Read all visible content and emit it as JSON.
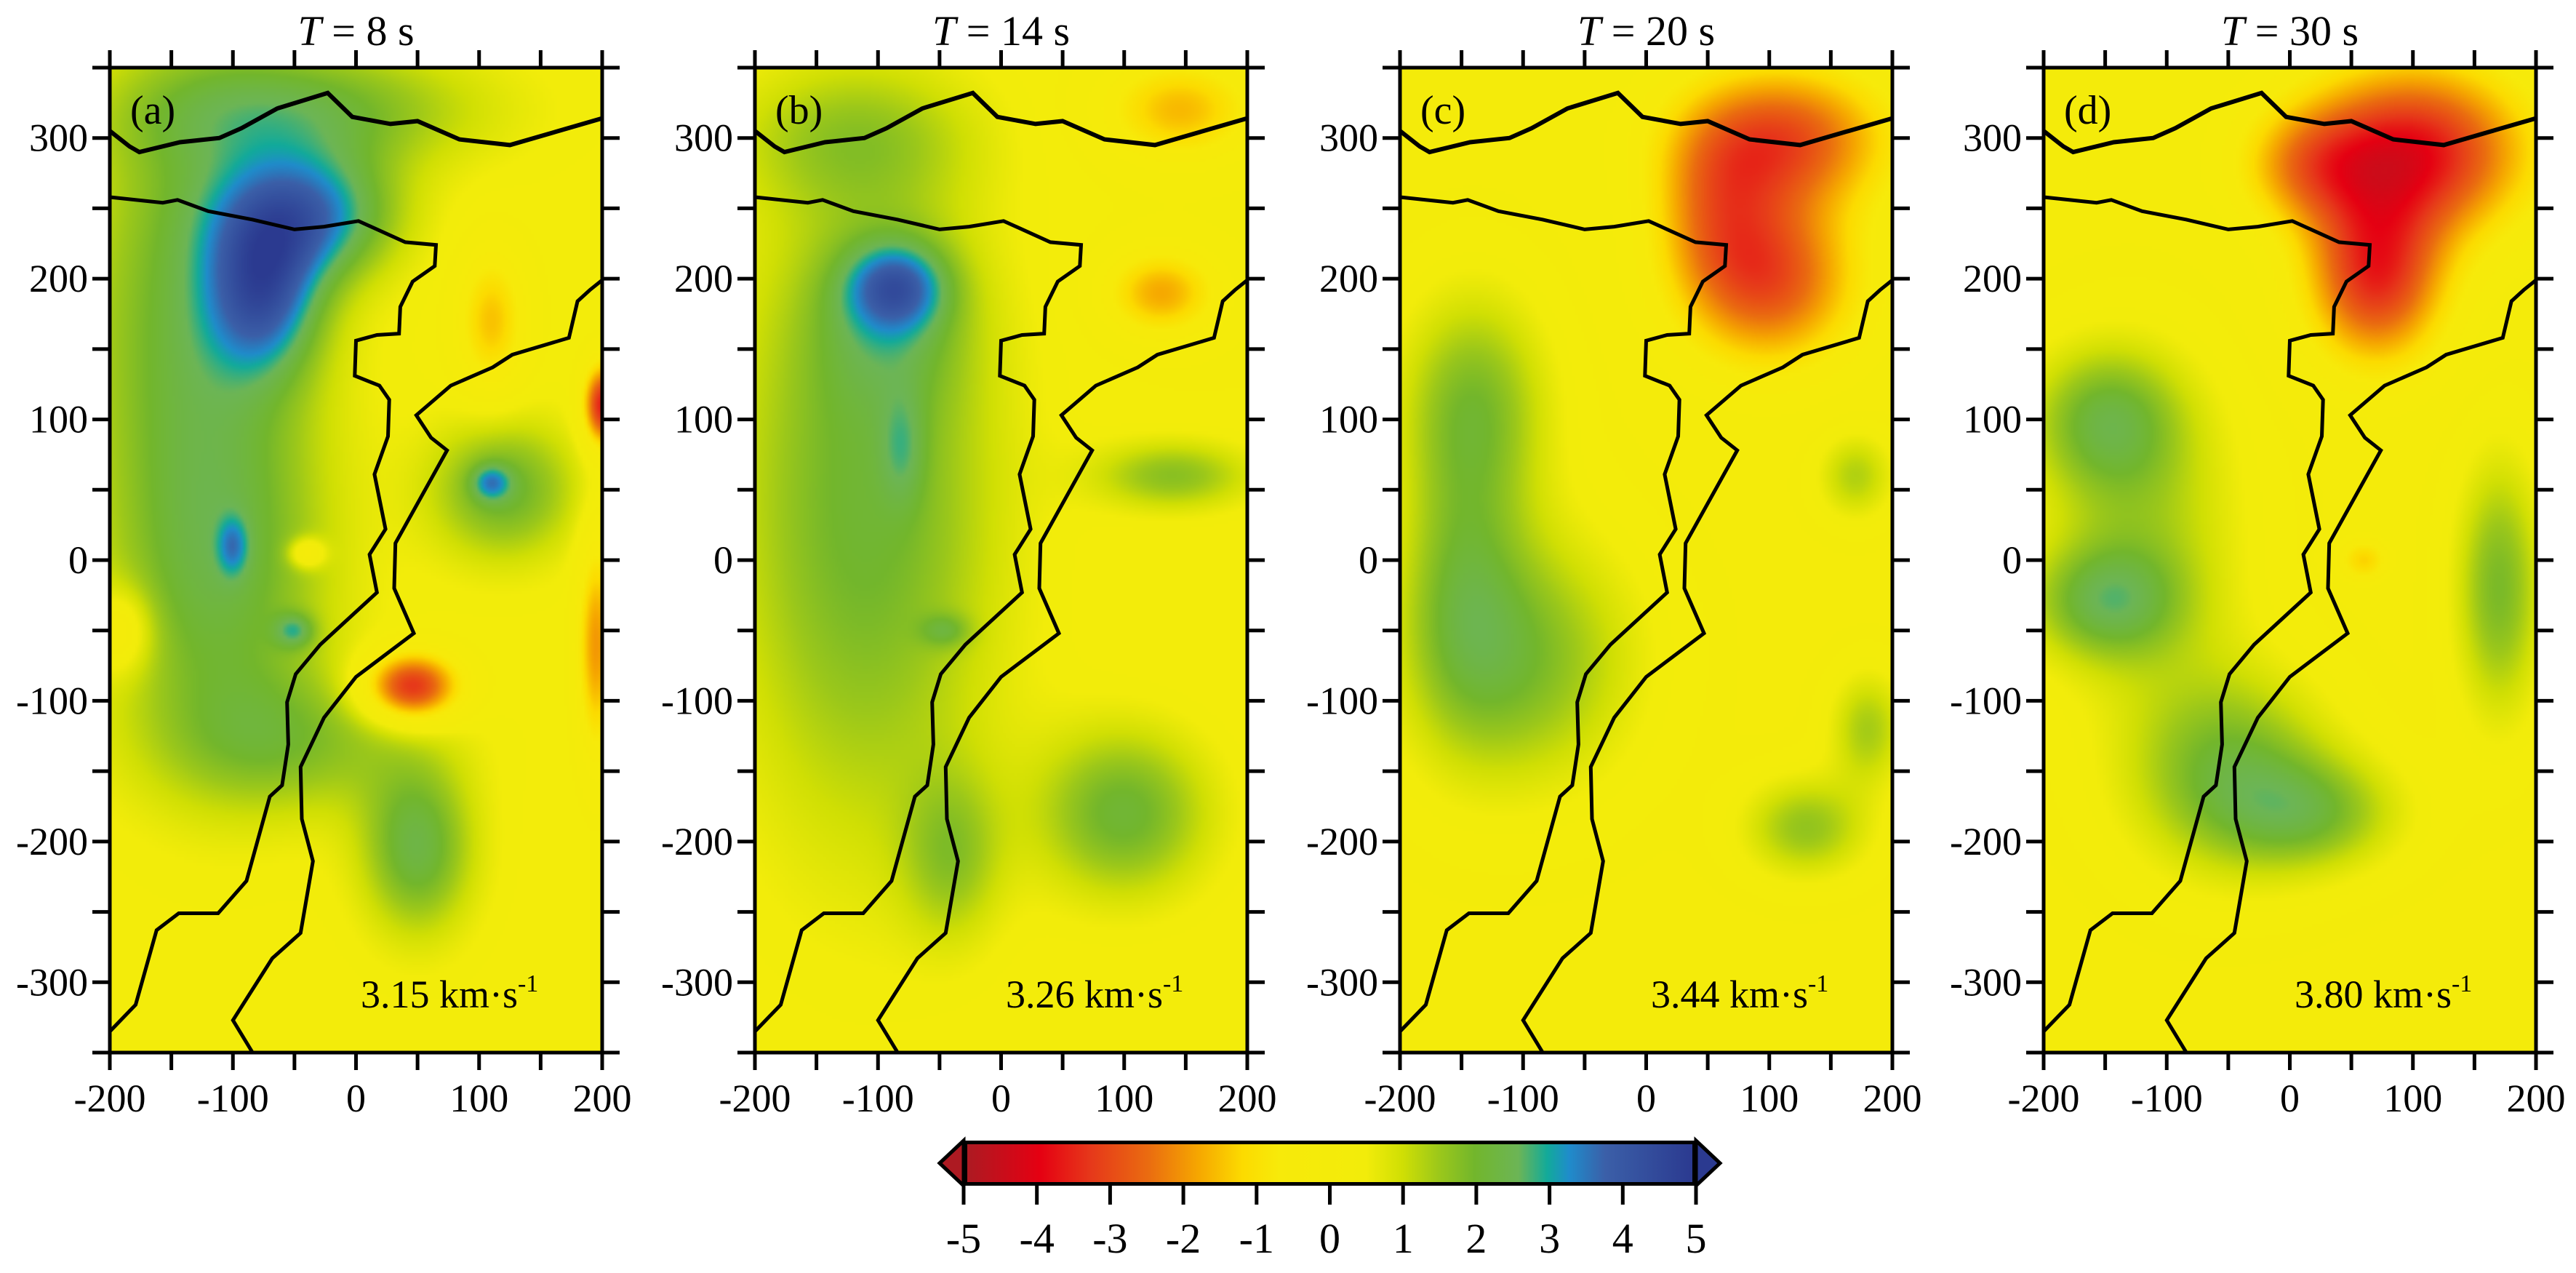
{
  "chart_data": {
    "type": "heatmap",
    "xlim": [
      -200,
      200
    ],
    "ylim": [
      -350,
      350
    ],
    "xticks": [
      -200,
      -100,
      0,
      100,
      200
    ],
    "yticks": [
      -300,
      -200,
      -100,
      0,
      100,
      200,
      300
    ],
    "minor_tick_step": 50,
    "panels": [
      {
        "label": "(a)",
        "title_var": "T",
        "title_rest": " = 8 s",
        "velocity": "3.15 km·s",
        "velocity_exp": "-1",
        "background": 0.3,
        "anomalies": [
          {
            "x": -130,
            "y": 180,
            "rx": 95,
            "ry": 170,
            "amp": 1.8
          },
          {
            "x": -110,
            "y": -20,
            "rx": 90,
            "ry": 130,
            "amp": 1.6
          },
          {
            "x": -40,
            "y": 320,
            "rx": 140,
            "ry": 45,
            "amp": 1.7
          },
          {
            "x": -50,
            "y": -130,
            "rx": 110,
            "ry": 50,
            "amp": 1.2
          },
          {
            "x": -40,
            "y": 245,
            "rx": 70,
            "ry": 45,
            "amp": 2.8
          },
          {
            "x": -75,
            "y": 190,
            "rx": 45,
            "ry": 55,
            "amp": 2.6
          },
          {
            "x": 110,
            "y": 170,
            "rx": 28,
            "ry": 50,
            "amp": -1.8
          },
          {
            "x": 200,
            "y": 110,
            "rx": 15,
            "ry": 28,
            "amp": -4.0
          },
          {
            "x": 120,
            "y": 50,
            "rx": 60,
            "ry": 50,
            "amp": 1.8
          },
          {
            "x": 110,
            "y": 55,
            "rx": 15,
            "ry": 12,
            "amp": 1.6
          },
          {
            "x": -100,
            "y": 10,
            "rx": 12,
            "ry": 20,
            "amp": 1.3
          },
          {
            "x": -50,
            "y": -50,
            "rx": 16,
            "ry": 12,
            "amp": 1.4
          },
          {
            "x": -40,
            "y": 5,
            "rx": 14,
            "ry": 10,
            "amp": -1.7
          },
          {
            "x": 45,
            "y": -90,
            "rx": 38,
            "ry": 24,
            "amp": -4.0
          },
          {
            "x": 195,
            "y": -60,
            "rx": 15,
            "ry": 75,
            "amp": -2.3
          },
          {
            "x": 50,
            "y": -205,
            "rx": 45,
            "ry": 60,
            "amp": 2.0
          },
          {
            "x": -190,
            "y": -50,
            "rx": 25,
            "ry": 30,
            "amp": -1.2
          }
        ]
      },
      {
        "label": "(b)",
        "title_var": "T",
        "title_rest": " = 14 s",
        "velocity": "3.26 km·s",
        "velocity_exp": "-1",
        "background": 0.2,
        "anomalies": [
          {
            "x": -110,
            "y": 40,
            "rx": 110,
            "ry": 240,
            "amp": 1.9
          },
          {
            "x": -120,
            "y": 300,
            "rx": 100,
            "ry": 50,
            "amp": 1.0
          },
          {
            "x": -85,
            "y": 195,
            "rx": 40,
            "ry": 30,
            "amp": 2.2
          },
          {
            "x": -90,
            "y": 170,
            "rx": 60,
            "ry": 60,
            "amp": 1.0
          },
          {
            "x": -80,
            "y": 80,
            "rx": 18,
            "ry": 40,
            "amp": 0.8
          },
          {
            "x": -45,
            "y": -50,
            "rx": 20,
            "ry": 12,
            "amp": 0.9
          },
          {
            "x": 145,
            "y": 320,
            "rx": 60,
            "ry": 35,
            "amp": -1.8
          },
          {
            "x": 130,
            "y": 190,
            "rx": 45,
            "ry": 30,
            "amp": -2.0
          },
          {
            "x": 140,
            "y": 60,
            "rx": 65,
            "ry": 25,
            "amp": 1.5
          },
          {
            "x": 100,
            "y": -180,
            "rx": 70,
            "ry": 60,
            "amp": 1.9
          },
          {
            "x": -40,
            "y": -210,
            "rx": 40,
            "ry": 60,
            "amp": 1.2
          }
        ]
      },
      {
        "label": "(c)",
        "title_var": "T",
        "title_rest": " = 20 s",
        "velocity": "3.44 km·s",
        "velocity_exp": "-1",
        "background": 0.1,
        "anomalies": [
          {
            "x": 110,
            "y": 300,
            "rx": 85,
            "ry": 50,
            "amp": -3.0
          },
          {
            "x": 100,
            "y": 200,
            "rx": 70,
            "ry": 60,
            "amp": -3.0
          },
          {
            "x": 55,
            "y": 250,
            "rx": 50,
            "ry": 60,
            "amp": -1.5
          },
          {
            "x": -140,
            "y": 110,
            "rx": 60,
            "ry": 80,
            "amp": 1.7
          },
          {
            "x": -100,
            "y": -70,
            "rx": 90,
            "ry": 90,
            "amp": 1.7
          },
          {
            "x": -150,
            "y": -20,
            "rx": 50,
            "ry": 100,
            "amp": 1.2
          },
          {
            "x": 130,
            "y": -190,
            "rx": 50,
            "ry": 35,
            "amp": 1.5
          },
          {
            "x": 180,
            "y": -120,
            "rx": 30,
            "ry": 40,
            "amp": 1.3
          },
          {
            "x": 170,
            "y": 60,
            "rx": 30,
            "ry": 30,
            "amp": 1.2
          }
        ]
      },
      {
        "label": "(d)",
        "title_var": "T",
        "title_rest": " = 30 s",
        "velocity": "3.80 km·s",
        "velocity_exp": "-1",
        "background": 0.1,
        "anomalies": [
          {
            "x": 100,
            "y": 290,
            "rx": 90,
            "ry": 60,
            "amp": -3.9
          },
          {
            "x": 70,
            "y": 200,
            "rx": 55,
            "ry": 60,
            "amp": -3.4
          },
          {
            "x": 15,
            "y": 280,
            "rx": 55,
            "ry": 40,
            "amp": -1.5
          },
          {
            "x": 60,
            "y": 0,
            "rx": 20,
            "ry": 15,
            "amp": -1.4
          },
          {
            "x": -150,
            "y": 100,
            "rx": 60,
            "ry": 50,
            "amp": 1.7
          },
          {
            "x": -150,
            "y": -30,
            "rx": 60,
            "ry": 40,
            "amp": 1.7
          },
          {
            "x": -50,
            "y": -150,
            "rx": 80,
            "ry": 70,
            "amp": 1.9
          },
          {
            "x": 20,
            "y": -180,
            "rx": 70,
            "ry": 40,
            "amp": 1.5
          },
          {
            "x": 170,
            "y": -20,
            "rx": 35,
            "ry": 90,
            "amp": 1.8
          },
          {
            "x": -120,
            "y": 20,
            "rx": 80,
            "ry": 110,
            "amp": 1.2
          }
        ]
      }
    ],
    "boundaries": [
      [
        [
          -200,
          305
        ],
        [
          -184,
          294
        ],
        [
          -176,
          290
        ],
        [
          -143,
          297
        ],
        [
          -111,
          300
        ],
        [
          -93,
          307
        ],
        [
          -64,
          321
        ],
        [
          -23,
          332
        ],
        [
          -3,
          315
        ],
        [
          28,
          310
        ],
        [
          50,
          312
        ],
        [
          84,
          299
        ],
        [
          125,
          295
        ],
        [
          200,
          314
        ]
      ],
      [
        [
          -200,
          258
        ],
        [
          -157,
          254
        ],
        [
          -145,
          256
        ],
        [
          -120,
          248
        ],
        [
          -84,
          242
        ],
        [
          -50,
          235
        ],
        [
          -26,
          237
        ],
        [
          2,
          241
        ],
        [
          40,
          226
        ],
        [
          65,
          224
        ],
        [
          64,
          209
        ],
        [
          46,
          198
        ],
        [
          36,
          180
        ],
        [
          35,
          161
        ],
        [
          17,
          160
        ],
        [
          0,
          156
        ],
        [
          -1,
          131
        ],
        [
          19,
          124
        ],
        [
          27,
          114
        ],
        [
          26,
          88
        ],
        [
          15,
          61
        ],
        [
          24,
          22
        ],
        [
          11,
          4
        ],
        [
          17,
          -23
        ],
        [
          -29,
          -60
        ],
        [
          -49,
          -81
        ],
        [
          -56,
          -101
        ],
        [
          -55,
          -131
        ],
        [
          -60,
          -160
        ],
        [
          -70,
          -168
        ],
        [
          -89,
          -228
        ],
        [
          -112,
          -251
        ],
        [
          -144,
          -251
        ],
        [
          -162,
          -263
        ],
        [
          -179,
          -316
        ],
        [
          -200,
          -335
        ]
      ],
      [
        [
          200,
          199
        ],
        [
          190,
          192
        ],
        [
          180,
          184
        ],
        [
          173,
          158
        ],
        [
          127,
          146
        ],
        [
          111,
          137
        ],
        [
          77,
          124
        ],
        [
          49,
          103
        ],
        [
          61,
          87
        ],
        [
          74,
          78
        ],
        [
          32,
          12
        ],
        [
          31,
          -20
        ],
        [
          47,
          -52
        ],
        [
          0,
          -83
        ],
        [
          -26,
          -112
        ],
        [
          -45,
          -147
        ],
        [
          -44,
          -184
        ],
        [
          -35,
          -214
        ],
        [
          -45,
          -265
        ],
        [
          -68,
          -283
        ],
        [
          -100,
          -327
        ],
        [
          -84,
          -350
        ]
      ]
    ],
    "colorbar": {
      "range": [
        -5,
        5
      ],
      "ticks": [
        -5,
        -4,
        -3,
        -2,
        -1,
        0,
        1,
        2,
        3,
        4,
        5
      ],
      "extend": "both",
      "stops": [
        [
          -5,
          "#ad1a22"
        ],
        [
          -4,
          "#e50012"
        ],
        [
          -3.3,
          "#e6381a"
        ],
        [
          -2.5,
          "#ea6c10"
        ],
        [
          -1.8,
          "#f6a800"
        ],
        [
          -1.2,
          "#fcdb00"
        ],
        [
          -0.7,
          "#f7ea0a"
        ],
        [
          0.5,
          "#f2ec0a"
        ],
        [
          1,
          "#d0df04"
        ],
        [
          1.5,
          "#9cc81a"
        ],
        [
          2,
          "#72b62c"
        ],
        [
          2.6,
          "#6cb556"
        ],
        [
          3,
          "#12aa9a"
        ],
        [
          3.3,
          "#1f8ccb"
        ],
        [
          3.8,
          "#3b5fa8"
        ],
        [
          5,
          "#2b3a90"
        ]
      ]
    }
  }
}
